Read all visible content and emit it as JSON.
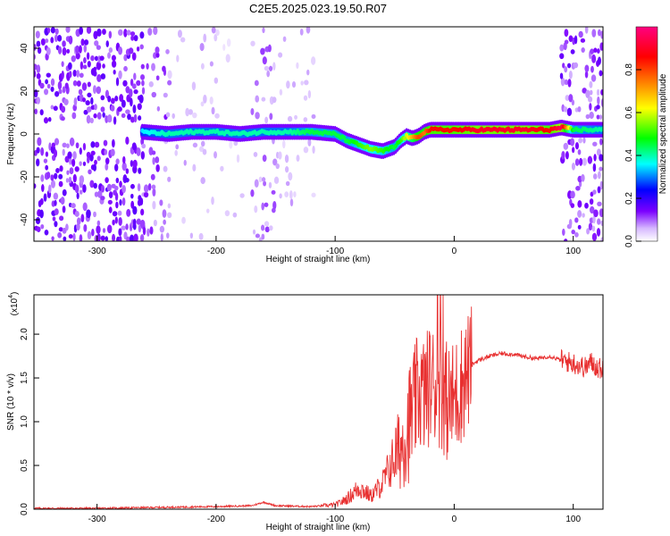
{
  "title": "C2E5.2025.023.19.50.R07",
  "chart_data": [
    {
      "type": "heatmap",
      "xlabel": "Height of straight line (km)",
      "ylabel": "Frequency (Hz)",
      "xlim": [
        -353,
        125
      ],
      "ylim": [
        -50,
        50
      ],
      "xticks": [
        -300,
        -200,
        -100,
        0,
        100
      ],
      "yticks": [
        -40,
        -20,
        0,
        20,
        40
      ],
      "colorbar": {
        "label": "Normalized spectral amplitude",
        "range": [
          0,
          1
        ],
        "ticks": [
          0.0,
          0.2,
          0.4,
          0.6,
          0.8
        ],
        "tick_labels": [
          "0.0",
          "0.2",
          "0.4",
          "0.6",
          "0.8"
        ],
        "colormap": [
          "#ffffff",
          "#7b00ff",
          "#0000ff",
          "#00ffff",
          "#00ff00",
          "#ffff00",
          "#ff8000",
          "#ff0000",
          "#ff0080"
        ]
      },
      "ridge": {
        "x": [
          -262,
          -240,
          -220,
          -200,
          -180,
          -160,
          -140,
          -120,
          -100,
          -90,
          -80,
          -70,
          -60,
          -50,
          -45,
          -40,
          -35,
          -30,
          -25,
          -20,
          -10,
          0,
          20,
          40,
          60,
          80,
          90,
          100,
          125
        ],
        "freq": [
          1,
          0,
          1,
          1,
          0,
          1,
          1,
          1,
          0,
          -3,
          -5,
          -7,
          -8,
          -6,
          -3,
          -1,
          -2,
          -1,
          1,
          2,
          2,
          2,
          2,
          2,
          2,
          2,
          3,
          2,
          2
        ],
        "amplitude": [
          0.35,
          0.4,
          0.4,
          0.4,
          0.4,
          0.4,
          0.4,
          0.45,
          0.45,
          0.45,
          0.5,
          0.55,
          0.5,
          0.45,
          0.5,
          0.6,
          0.7,
          0.8,
          0.75,
          0.85,
          0.85,
          0.85,
          0.9,
          0.9,
          0.9,
          0.85,
          0.95,
          0.45,
          0.4
        ]
      }
    },
    {
      "type": "line",
      "xlabel": "Height of straight line (km)",
      "ylabel": "SNR (10 * v/v)",
      "y_multiplier": "(x10",
      "y_multiplier_exp": "4",
      "y_multiplier_close": ")",
      "xlim": [
        -353,
        125
      ],
      "ylim": [
        0,
        2.45
      ],
      "xticks": [
        -300,
        -200,
        -100,
        0,
        100
      ],
      "yticks": [
        0.0,
        0.5,
        1.0,
        1.5,
        2.0
      ],
      "color": "#e83030",
      "series": [
        {
          "x": [
            -353,
            -300,
            -250,
            -200,
            -170,
            -160,
            -150,
            -120,
            -110,
            -100,
            -95,
            -90,
            -85,
            -80,
            -75,
            -70,
            -65,
            -60,
            -55,
            -50,
            -45,
            -40,
            -35,
            -30,
            -25,
            -20,
            -15,
            -10,
            -5,
            0,
            5,
            10,
            15,
            20,
            30,
            40,
            50,
            60,
            70,
            80,
            90,
            100,
            110,
            115,
            120,
            125
          ],
          "y": [
            0.01,
            0.01,
            0.02,
            0.03,
            0.04,
            0.08,
            0.04,
            0.03,
            0.04,
            0.05,
            0.08,
            0.12,
            0.18,
            0.25,
            0.2,
            0.15,
            0.22,
            0.3,
            0.45,
            0.6,
            0.7,
            0.9,
            1.1,
            1.35,
            1.3,
            1.45,
            1.4,
            1.35,
            1.2,
            1.25,
            1.4,
            1.55,
            1.65,
            1.7,
            1.75,
            1.78,
            1.77,
            1.74,
            1.72,
            1.75,
            1.7,
            1.67,
            1.62,
            1.68,
            1.62,
            1.6
          ]
        }
      ]
    }
  ]
}
